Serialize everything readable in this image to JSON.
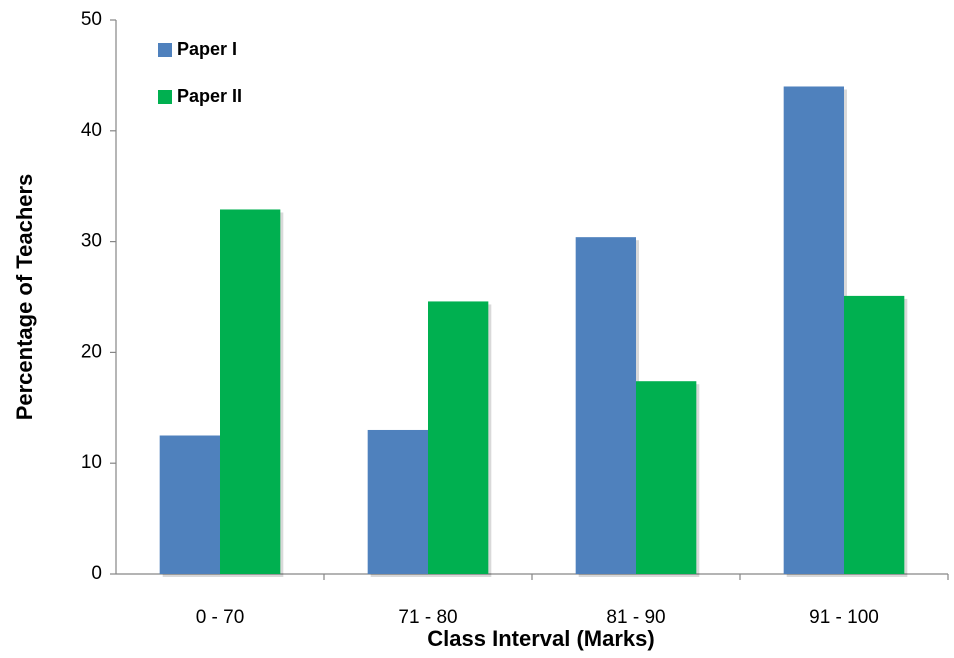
{
  "chart_data": {
    "type": "bar",
    "x_label": "Class Interval (Marks)",
    "y_label": "Percentage of Teachers",
    "categories": [
      "0 - 70",
      "71 - 80",
      "81 - 90",
      "91 - 100"
    ],
    "series": [
      {
        "name": "Paper I",
        "color": "#4f81bd",
        "values": [
          12.5,
          13,
          30.4,
          44
        ]
      },
      {
        "name": "Paper II",
        "color": "#00b050",
        "values": [
          32.9,
          24.6,
          17.4,
          25.1
        ]
      }
    ],
    "ylim": [
      0,
      50
    ],
    "yticks": [
      0,
      10,
      20,
      30,
      40,
      50
    ],
    "grid": false,
    "legend": "top-left"
  }
}
